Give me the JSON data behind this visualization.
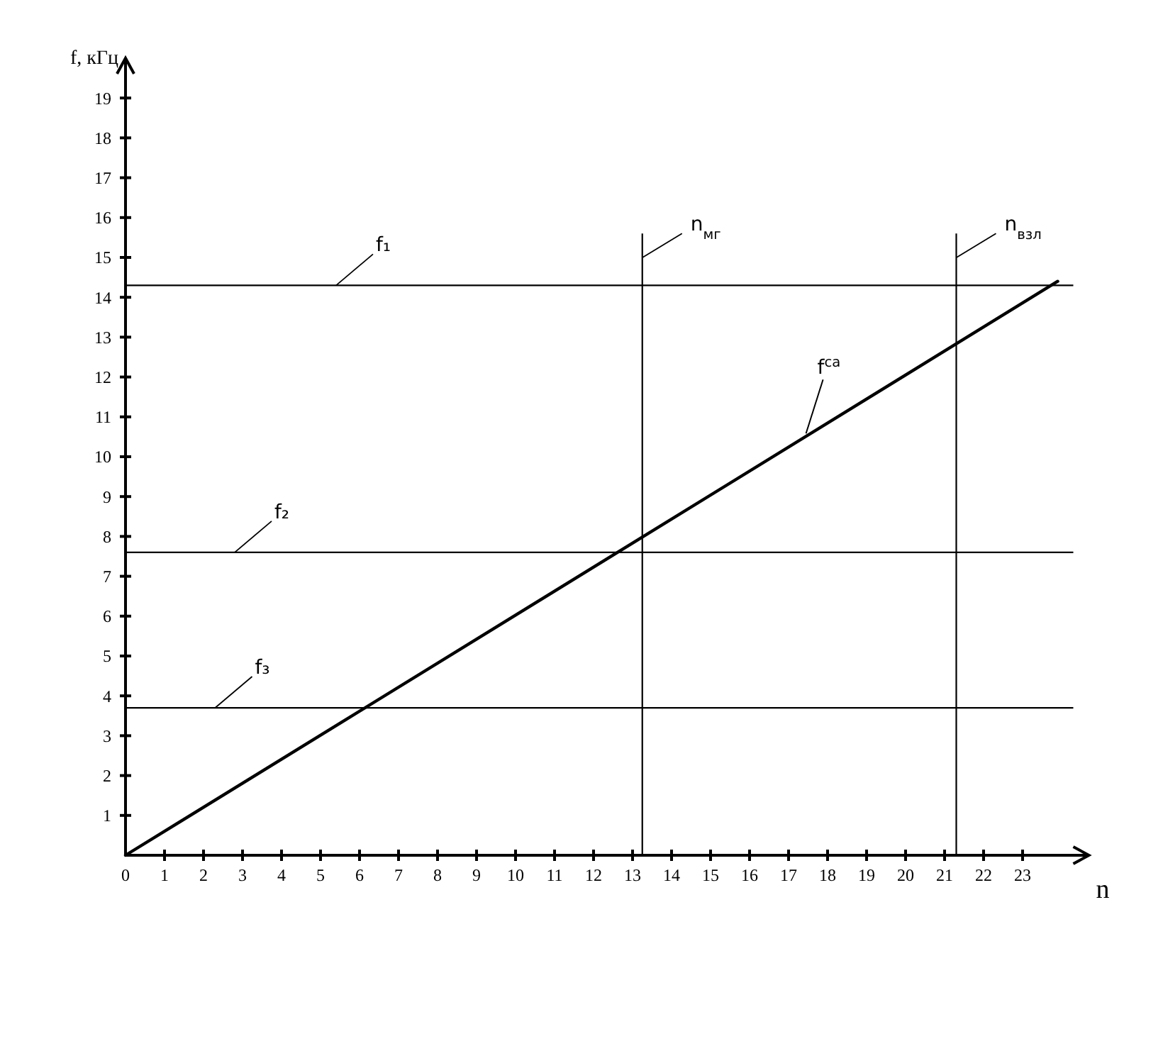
{
  "chart_data": {
    "type": "line",
    "xlabel": "n",
    "ylabel": "f, кГц",
    "xlim": [
      0,
      24.7
    ],
    "ylim": [
      0,
      20
    ],
    "xticks": [
      0,
      1,
      2,
      3,
      4,
      5,
      6,
      7,
      8,
      9,
      10,
      11,
      12,
      13,
      14,
      15,
      16,
      17,
      18,
      19,
      20,
      21,
      22,
      23
    ],
    "yticks": [
      1,
      2,
      3,
      4,
      5,
      6,
      7,
      8,
      9,
      10,
      11,
      12,
      13,
      14,
      15,
      16,
      17,
      18,
      19
    ],
    "grid": false,
    "marker": "none",
    "line_style": "solid",
    "series": [
      {
        "name": "f$^{са}$",
        "color": "#000000",
        "x": [
          0,
          23.9
        ],
        "values": [
          0,
          14.4
        ]
      }
    ],
    "ref_lines": [
      {
        "axis": "y",
        "value": 14.3,
        "label": "f₁",
        "color": "#000000"
      },
      {
        "axis": "y",
        "value": 7.6,
        "label": "f₂",
        "color": "#000000"
      },
      {
        "axis": "y",
        "value": 3.7,
        "label": "f₃",
        "color": "#000000"
      },
      {
        "axis": "x",
        "value": 13.25,
        "label": "n$_{мг}$",
        "color": "#000000"
      },
      {
        "axis": "x",
        "value": 21.3,
        "label": "n$_{взл}$",
        "color": "#000000"
      }
    ]
  }
}
